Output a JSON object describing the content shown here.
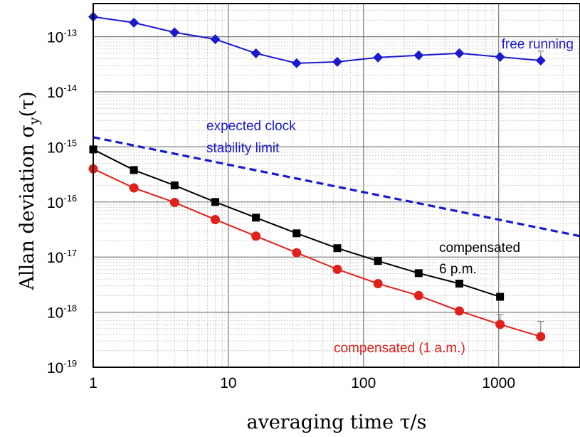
{
  "chart_data": {
    "type": "line",
    "xscale": "log",
    "yscale": "log",
    "xlim": [
      1,
      4000
    ],
    "ylim": [
      1e-19,
      4e-13
    ],
    "grid": true,
    "xlabel": "averaging time τ/s",
    "ylabel_main": "Allan deviation σ",
    "ylabel_sub": "y",
    "ylabel_tail": "(τ)",
    "xticks": [
      1,
      10,
      100,
      1000
    ],
    "xtick_labels": [
      "1",
      "10",
      "100",
      "1000"
    ],
    "yticks": [
      1e-19,
      1e-18,
      1e-17,
      1e-16,
      1e-15,
      1e-14,
      1e-13
    ],
    "ytick_mant": "10",
    "ytick_exps": [
      "-19",
      "-18",
      "-17",
      "-16",
      "-15",
      "-14",
      "-13"
    ],
    "series": [
      {
        "label_lines": [
          "free running"
        ],
        "color": "#1a1acc",
        "marker": "diamond",
        "style": "solid",
        "x": [
          1,
          2,
          4,
          8,
          16,
          32,
          64,
          128,
          256,
          512,
          1024,
          2048
        ],
        "y": [
          2.3e-13,
          1.8e-13,
          1.2e-13,
          9e-14,
          5e-14,
          3.3e-14,
          3.5e-14,
          4.2e-14,
          4.6e-14,
          5e-14,
          4.3e-14,
          3.7e-14
        ],
        "err_upper": [
          null,
          null,
          null,
          null,
          null,
          null,
          null,
          null,
          null,
          null,
          null,
          5.5e-14
        ]
      },
      {
        "label_lines": [
          "expected clock",
          "stability limit"
        ],
        "color": "#1a1acc",
        "marker": "none",
        "style": "dashed",
        "x": [
          1,
          4000
        ],
        "y": [
          1.5e-15,
          2.4e-17
        ]
      },
      {
        "label_lines": [
          "compensated",
          "6 p.m."
        ],
        "color": "#000000",
        "marker": "square",
        "style": "solid",
        "x": [
          1,
          2,
          4,
          8,
          16,
          32,
          64,
          128,
          256,
          512,
          1024
        ],
        "y": [
          9e-16,
          3.8e-16,
          2e-16,
          1e-16,
          5.2e-17,
          2.7e-17,
          1.45e-17,
          8.5e-18,
          5.1e-18,
          3.3e-18,
          1.9e-18
        ],
        "err_upper": [
          null,
          null,
          null,
          null,
          null,
          null,
          null,
          null,
          null,
          null,
          2.2e-18
        ]
      },
      {
        "label_lines": [
          "compensated (1 a.m.)"
        ],
        "color": "#e0201b",
        "marker": "circle",
        "style": "solid",
        "x": [
          1,
          2,
          4,
          8,
          16,
          32,
          64,
          128,
          256,
          512,
          1024,
          2048
        ],
        "y": [
          4e-16,
          1.8e-16,
          9.8e-17,
          4.8e-17,
          2.4e-17,
          1.2e-17,
          6e-18,
          3.3e-18,
          2e-18,
          1.05e-18,
          6e-19,
          3.6e-19
        ],
        "err_upper": [
          null,
          null,
          null,
          null,
          null,
          null,
          null,
          null,
          null,
          null,
          9e-19,
          6.8e-19
        ]
      }
    ]
  }
}
